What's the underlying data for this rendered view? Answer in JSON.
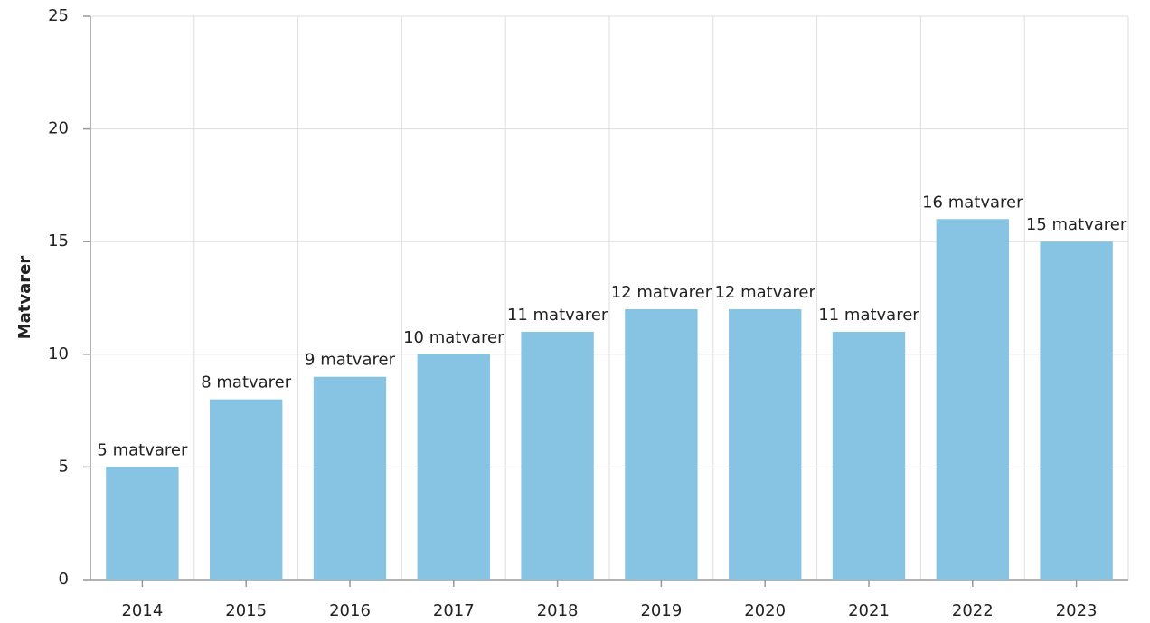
{
  "chart_data": {
    "type": "bar",
    "y_label": "Matvarer",
    "categories": [
      "2014",
      "2015",
      "2016",
      "2017",
      "2018",
      "2019",
      "2020",
      "2021",
      "2022",
      "2023"
    ],
    "values": [
      5,
      8,
      9,
      10,
      11,
      12,
      12,
      11,
      16,
      15
    ],
    "value_labels": [
      "5 matvarer",
      "8 matvarer",
      "9 matvarer",
      "10 matvarer",
      "11 matvarer",
      "12 matvarer",
      "12 matvarer",
      "11 matvarer",
      "16 matvarer",
      "15 matvarer"
    ],
    "color": "#87c3e3",
    "ylim": [
      0,
      25
    ],
    "yticks": [
      0,
      5,
      10,
      15,
      20,
      25
    ],
    "grid": true
  }
}
